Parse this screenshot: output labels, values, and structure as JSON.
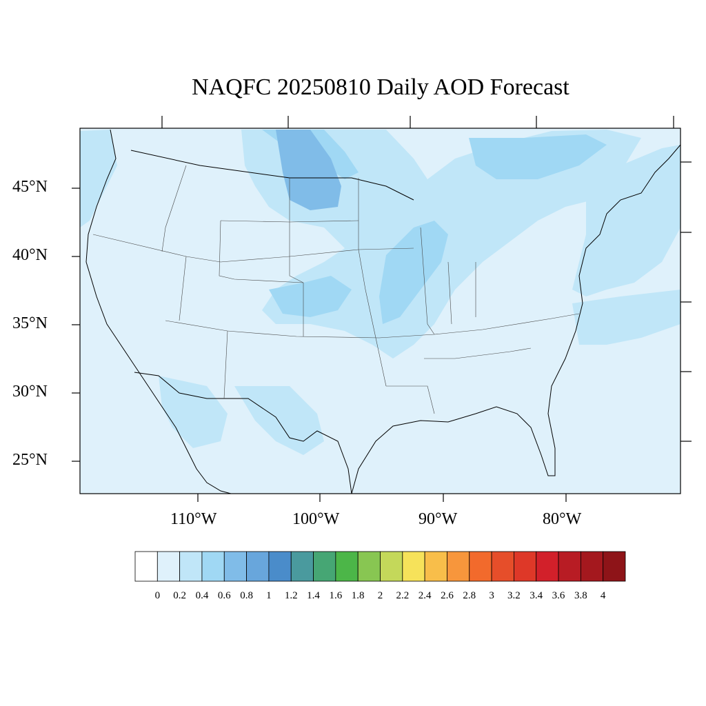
{
  "title": "NAQFC 20250810 Daily AOD Forecast",
  "map": {
    "lat_labels": [
      "45°N",
      "40°N",
      "35°N",
      "30°N",
      "25°N"
    ],
    "lon_labels": [
      "110°W",
      "100°W",
      "90°W",
      "80°W"
    ],
    "background_color": "#dff1fb"
  },
  "colorbar": {
    "labels": [
      "0",
      "0.2",
      "0.4",
      "0.6",
      "0.8",
      "1",
      "1.2",
      "1.4",
      "1.6",
      "1.8",
      "2",
      "2.2",
      "2.4",
      "2.6",
      "2.8",
      "3",
      "3.2",
      "3.4",
      "3.6",
      "3.8",
      "4"
    ],
    "colors": [
      "#ffffff",
      "#dff1fb",
      "#c0e6f8",
      "#a0d8f4",
      "#80bce8",
      "#68a6dc",
      "#4a8cca",
      "#4a9a9e",
      "#46a674",
      "#4cb648",
      "#88c652",
      "#c4d85a",
      "#f6e25a",
      "#f8be4a",
      "#f7963c",
      "#f26a2c",
      "#e64e2a",
      "#de3828",
      "#d2202a",
      "#b81c24",
      "#a4181e",
      "#8e1418"
    ]
  }
}
